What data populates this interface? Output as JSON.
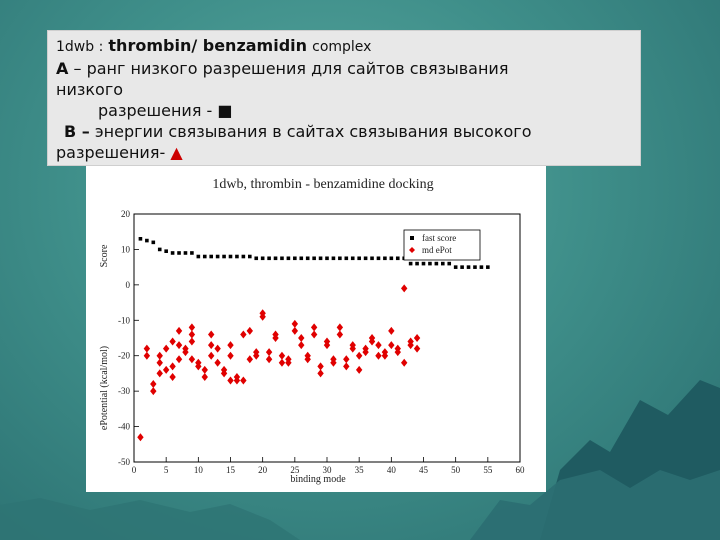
{
  "caption": {
    "line1_prefix": "1dwb :",
    "line1_bold": "thrombin/ benzamidin",
    "line1_suffix": "complex",
    "line2_bold": "A",
    "line2_text": "– ранг низкого разрешения для сайтов связывания",
    "line3": "низкого",
    "line4": "разрешения - ■",
    "line5_bold": "B –",
    "line5_text": "энергии связывания в сайтах связывания высокого",
    "line6": "разрешения-",
    "line6_marker": "▲"
  },
  "colors": {
    "score": "#000000",
    "epot": "#e00000",
    "background": "#3f8f8a"
  },
  "chart_data": {
    "type": "scatter",
    "title": "1dwb,   thrombin - benzamidine docking",
    "xlabel": "binding mode",
    "ylabel_top": "Score",
    "ylabel_bottom": "ePotential (kcal/mol)",
    "xlim": [
      0,
      60
    ],
    "ylim": [
      -50,
      20
    ],
    "xticks": [
      "0",
      "5",
      "10",
      "15",
      "20",
      "25",
      "30",
      "35",
      "40",
      "45",
      "50",
      "55",
      "60"
    ],
    "yticks": [
      "20",
      "10",
      "0",
      "-10",
      "-20",
      "-30",
      "-40",
      "-50"
    ],
    "legend_position": "top-right",
    "series": [
      {
        "name": "fast score",
        "marker": "square",
        "x": [
          1,
          2,
          3,
          4,
          5,
          6,
          7,
          8,
          9,
          10,
          11,
          12,
          13,
          14,
          15,
          16,
          17,
          18,
          19,
          20,
          21,
          22,
          23,
          24,
          25,
          26,
          27,
          28,
          29,
          30,
          31,
          32,
          33,
          34,
          35,
          36,
          37,
          38,
          39,
          40,
          41,
          42,
          43,
          44,
          45,
          46,
          47,
          48,
          49,
          50,
          51,
          52,
          53,
          54,
          55
        ],
        "y": [
          13,
          12.5,
          12,
          10,
          9.5,
          9,
          9,
          9,
          9,
          8,
          8,
          8,
          8,
          8,
          8,
          8,
          8,
          8,
          7.5,
          7.5,
          7.5,
          7.5,
          7.5,
          7.5,
          7.5,
          7.5,
          7.5,
          7.5,
          7.5,
          7.5,
          7.5,
          7.5,
          7.5,
          7.5,
          7.5,
          7.5,
          7.5,
          7.5,
          7.5,
          7.5,
          7.5,
          7.5,
          6,
          6,
          6,
          6,
          6,
          6,
          6,
          5,
          5,
          5,
          5,
          5,
          5
        ]
      },
      {
        "name": "md ePot",
        "marker": "diamond",
        "x": [
          1,
          2,
          2,
          3,
          3,
          4,
          4,
          4,
          5,
          5,
          6,
          6,
          6,
          7,
          7,
          7,
          8,
          8,
          9,
          9,
          9,
          9,
          10,
          10,
          11,
          11,
          12,
          12,
          12,
          13,
          13,
          14,
          14,
          15,
          15,
          15,
          16,
          16,
          17,
          17,
          18,
          18,
          19,
          19,
          20,
          20,
          21,
          21,
          22,
          22,
          23,
          23,
          24,
          24,
          25,
          25,
          26,
          26,
          27,
          27,
          28,
          28,
          29,
          29,
          30,
          30,
          31,
          31,
          32,
          32,
          33,
          33,
          34,
          34,
          35,
          35,
          36,
          36,
          37,
          37,
          38,
          38,
          39,
          39,
          40,
          40,
          41,
          41,
          42,
          42,
          43,
          43,
          44,
          44
        ],
        "y": [
          -43,
          -18,
          -20,
          -30,
          -28,
          -20,
          -22,
          -25,
          -18,
          -24,
          -16,
          -23,
          -26,
          -13,
          -17,
          -21,
          -18,
          -19,
          -12,
          -14,
          -16,
          -21,
          -22,
          -23,
          -24,
          -26,
          -14,
          -17,
          -20,
          -18,
          -22,
          -24,
          -25,
          -17,
          -20,
          -27,
          -26,
          -27,
          -27,
          -14,
          -21,
          -13,
          -19,
          -20,
          -8,
          -9,
          -19,
          -21,
          -14,
          -15,
          -20,
          -22,
          -22,
          -21,
          -11,
          -13,
          -15,
          -17,
          -20,
          -21,
          -12,
          -14,
          -23,
          -25,
          -16,
          -17,
          -21,
          -22,
          -12,
          -14,
          -21,
          -23,
          -17,
          -18,
          -20,
          -24,
          -18,
          -19,
          -15,
          -16,
          -17,
          -20,
          -19,
          -20,
          -13,
          -17,
          -18,
          -19,
          -1,
          -22,
          -17,
          -16,
          -15,
          -18
        ]
      }
    ]
  }
}
